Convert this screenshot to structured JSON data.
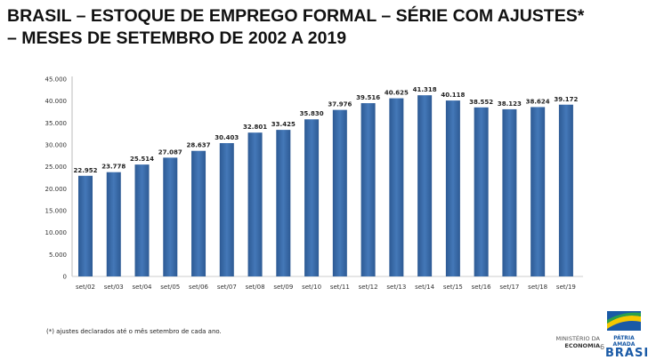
{
  "title_line1": "BRASIL – ESTOQUE DE EMPREGO FORMAL – SÉRIE COM AJUSTES*",
  "title_line2": "– MESES DE SETEMBRO DE 2002 A 2019",
  "footnote": "(*) ajustes declarados até o mês setembro de cada ano.",
  "footer": {
    "ministry_line1": "MINISTÉRIO DA",
    "ministry_line2": "ECONOMIA",
    "page_number": "6",
    "logo_line1": "PÁTRIA AMADA",
    "logo_line2": "BRASIL"
  },
  "chart_data": {
    "type": "bar",
    "categories": [
      "set/02",
      "set/03",
      "set/04",
      "set/05",
      "set/06",
      "set/07",
      "set/08",
      "set/09",
      "set/10",
      "set/11",
      "set/12",
      "set/13",
      "set/14",
      "set/15",
      "set/16",
      "set/17",
      "set/18",
      "set/19"
    ],
    "values": [
      22952,
      23778,
      25514,
      27087,
      28637,
      30403,
      32801,
      33425,
      35830,
      37976,
      39516,
      40625,
      41318,
      40118,
      38552,
      38123,
      38624,
      39172
    ],
    "data_labels": [
      "22.952",
      "23.778",
      "25.514",
      "27.087",
      "28.637",
      "30.403",
      "32.801",
      "33.425",
      "35.830",
      "37.976",
      "39.516",
      "40.625",
      "41.318",
      "40.118",
      "38.552",
      "38.123",
      "38.624",
      "39.172"
    ],
    "yticks": [
      "0",
      "5.000",
      "10.000",
      "15.000",
      "20.000",
      "25.000",
      "30.000",
      "35.000",
      "40.000",
      "45.000"
    ],
    "ylim": [
      0,
      45000
    ],
    "grid": false,
    "bar_color": "#3a6aa8"
  }
}
